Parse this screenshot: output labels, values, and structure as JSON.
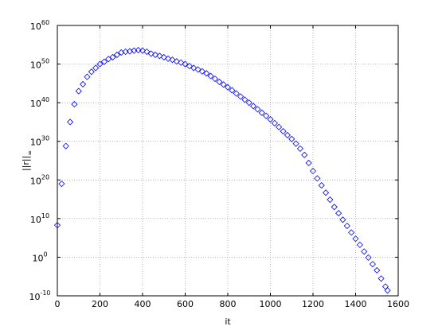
{
  "chart_data": {
    "type": "scatter",
    "xlabel": "it",
    "ylabel": "||r||",
    "ylabel_sub": "∞",
    "log_y": true,
    "grid": true,
    "marker": "diamond",
    "color": "#0000ff",
    "xlim": [
      0,
      1600
    ],
    "xticks": [
      0,
      200,
      400,
      600,
      800,
      1000,
      1200,
      1400,
      1600
    ],
    "ylim": [
      1e-10,
      1e+60
    ],
    "yticks": [
      {
        "value": 1e-10,
        "label": "10",
        "exponent": "-10"
      },
      {
        "value": 1,
        "label": "10",
        "exponent": "0"
      },
      {
        "value": 10000000000.0,
        "label": "10",
        "exponent": "10"
      },
      {
        "value": 1e+20,
        "label": "10",
        "exponent": "20"
      },
      {
        "value": 1e+30,
        "label": "10",
        "exponent": "30"
      },
      {
        "value": 1e+40,
        "label": "10",
        "exponent": "40"
      },
      {
        "value": 1e+50,
        "label": "10",
        "exponent": "50"
      },
      {
        "value": 1e+60,
        "label": "10",
        "exponent": "60"
      }
    ],
    "x": [
      0,
      20,
      40,
      60,
      80,
      100,
      120,
      140,
      160,
      180,
      200,
      220,
      240,
      260,
      280,
      300,
      320,
      340,
      360,
      380,
      400,
      420,
      440,
      460,
      480,
      500,
      520,
      540,
      560,
      580,
      600,
      620,
      640,
      660,
      680,
      700,
      720,
      740,
      760,
      780,
      800,
      820,
      840,
      860,
      880,
      900,
      920,
      940,
      960,
      980,
      1000,
      1020,
      1040,
      1060,
      1080,
      1100,
      1120,
      1140,
      1160,
      1180,
      1200,
      1220,
      1240,
      1260,
      1280,
      1300,
      1320,
      1340,
      1360,
      1380,
      1400,
      1420,
      1440,
      1460,
      1480,
      1500,
      1520,
      1540,
      1550
    ],
    "values": [
      200000000.0,
      1e+19,
      6e+28,
      1e+35,
      4e+39,
      1e+43,
      6e+44,
      5e+46,
      1e+48,
      1e+49,
      1e+50,
      4e+50,
      2e+51,
      6e+51,
      2.5e+52,
      1e+53,
      1.6e+53,
      2e+53,
      3e+53,
      4e+53,
      3e+53,
      1.6e+53,
      5e+52,
      2.5e+52,
      1.3e+52,
      6e+51,
      2.5e+51,
      1.3e+51,
      5e+50,
      2.5e+50,
      1e+50,
      3e+49,
      1e+49,
      4e+48,
      1.3e+48,
      4e+47,
      8e+46,
      1.6e+46,
      2.5e+45,
      5e+44,
      1e+44,
      1.6e+43,
      2.5e+42,
      4e+41,
      6e+40,
      1e+40,
      1.3e+39,
      2e+38,
      2.5e+37,
      4e+36,
      5e+35,
      5e+34,
      5e+33,
      4e+32,
      4e+31,
      4e+30,
      2.5e+29,
      1.3e+28,
      3e+26,
      2.5e+24,
      2e+22,
      2.5e+20,
      4e+18,
      5e+16,
      800000000000000.0,
      10000000000000.0,
      250000000000.0,
      5000000000.0,
      130000000.0,
      2500000.0,
      60000.0,
      1600.0,
      30,
      0.8,
      0.016,
      0.0004,
      3e-06,
      2.5e-08,
      2.5e-09
    ]
  }
}
